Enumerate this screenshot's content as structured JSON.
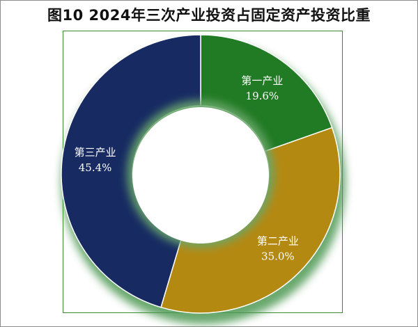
{
  "title": "图10 2024年三次产业投资占固定资产投资比重",
  "chart_data": {
    "type": "pie",
    "donut": true,
    "unit": "%",
    "slices": [
      {
        "label": "第一产业",
        "value": 19.6,
        "value_text": "19.6%",
        "color": "#217a24"
      },
      {
        "label": "第二产业",
        "value": 35.0,
        "value_text": "35.0%",
        "color": "#b48912"
      },
      {
        "label": "第三产业",
        "value": 45.4,
        "value_text": "45.4%",
        "color": "#172b62"
      }
    ]
  }
}
